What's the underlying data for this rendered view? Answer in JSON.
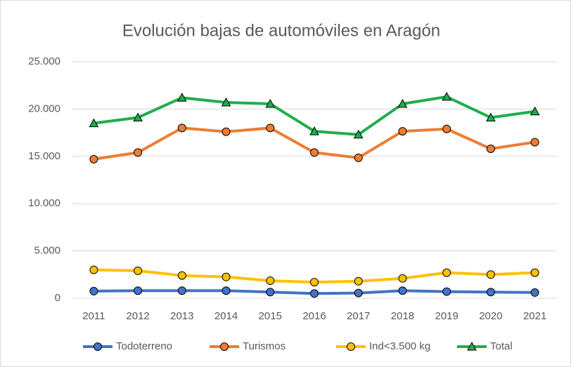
{
  "chart_data": {
    "type": "line",
    "title": "Evolución bajas de automóviles en Aragón",
    "categories": [
      "2011",
      "2012",
      "2013",
      "2014",
      "2015",
      "2016",
      "2017",
      "2018",
      "2019",
      "2020",
      "2021"
    ],
    "series": [
      {
        "name": "Todoterreno",
        "color": "#4472c4",
        "marker": "circle",
        "values": [
          750,
          800,
          800,
          800,
          650,
          500,
          550,
          800,
          700,
          650,
          600
        ]
      },
      {
        "name": "Turismos",
        "color": "#ed7d31",
        "marker": "circle",
        "values": [
          14700,
          15400,
          18000,
          17600,
          18000,
          15400,
          14850,
          17650,
          17900,
          15800,
          16500
        ]
      },
      {
        "name": "Ind<3.500 kg",
        "color": "#ffc000",
        "marker": "circle",
        "values": [
          3000,
          2900,
          2400,
          2250,
          1850,
          1700,
          1800,
          2100,
          2700,
          2500,
          2700
        ]
      },
      {
        "name": "Total",
        "color": "#1fae4b",
        "marker": "triangle",
        "values": [
          18500,
          19100,
          21200,
          20700,
          20550,
          17650,
          17300,
          20550,
          21300,
          19100,
          19750
        ]
      }
    ],
    "ylim": [
      0,
      25000
    ],
    "yticks": [
      0,
      {
        "value": 5000,
        "label": "5.000"
      },
      {
        "value": 10000,
        "label": "10.000"
      },
      {
        "value": 15000,
        "label": "15.000"
      },
      {
        "value": 20000,
        "label": "20.000"
      },
      {
        "value": 25000,
        "label": "25.000"
      }
    ],
    "grid": true,
    "legend": "bottom"
  }
}
